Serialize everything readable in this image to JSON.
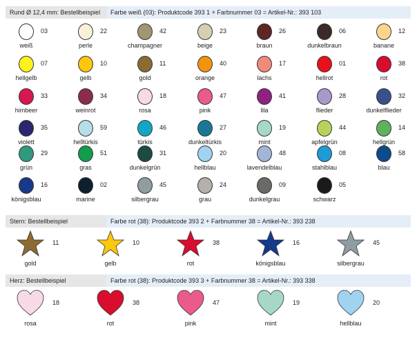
{
  "round": {
    "title": "Rund Ø 12,4 mm: Bestellbeispiel",
    "example": "Farbe weiß (03): Produktcode 393 1 + Farbnummer 03 = Artikel-Nr.: 393 103",
    "items": [
      {
        "name": "weiß",
        "num": "03",
        "color": "#ffffff"
      },
      {
        "name": "perle",
        "num": "22",
        "color": "#f8f1d8"
      },
      {
        "name": "champagner",
        "num": "42",
        "color": "#a39472"
      },
      {
        "name": "beige",
        "num": "23",
        "color": "#d6d0b3"
      },
      {
        "name": "braun",
        "num": "26",
        "color": "#5b2623"
      },
      {
        "name": "dunkelbraun",
        "num": "06",
        "color": "#3a2a2a"
      },
      {
        "name": "banane",
        "num": "12",
        "color": "#fbd68a"
      },
      {
        "name": "hellgelb",
        "num": "07",
        "color": "#fff21a"
      },
      {
        "name": "gelb",
        "num": "10",
        "color": "#fcc70c"
      },
      {
        "name": "gold",
        "num": "11",
        "color": "#8c6b32"
      },
      {
        "name": "orange",
        "num": "40",
        "color": "#f39411"
      },
      {
        "name": "lachs",
        "num": "17",
        "color": "#f08b7a"
      },
      {
        "name": "hellrot",
        "num": "01",
        "color": "#e8101a"
      },
      {
        "name": "rot",
        "num": "38",
        "color": "#d90d2e"
      },
      {
        "name": "himbeer",
        "num": "33",
        "color": "#d8174f"
      },
      {
        "name": "weinrot",
        "num": "34",
        "color": "#8a2c4b"
      },
      {
        "name": "rosa",
        "num": "18",
        "color": "#f8d9e8"
      },
      {
        "name": "pink",
        "num": "47",
        "color": "#ea5b8a"
      },
      {
        "name": "lila",
        "num": "41",
        "color": "#8d2281"
      },
      {
        "name": "flieder",
        "num": "28",
        "color": "#a79acb"
      },
      {
        "name": "dunkelflieder",
        "num": "32",
        "color": "#39508a"
      },
      {
        "name": "violett",
        "num": "35",
        "color": "#2a2770"
      },
      {
        "name": "helltürkis",
        "num": "59",
        "color": "#b7dde6"
      },
      {
        "name": "türkis",
        "num": "46",
        "color": "#12a6c5"
      },
      {
        "name": "dunkeltürkis",
        "num": "27",
        "color": "#1a7896"
      },
      {
        "name": "mint",
        "num": "19",
        "color": "#a6d8c8"
      },
      {
        "name": "apfelgrün",
        "num": "44",
        "color": "#b8d15d"
      },
      {
        "name": "hellgrün",
        "num": "14",
        "color": "#5fb25d"
      },
      {
        "name": "grün",
        "num": "29",
        "color": "#2f9b7e"
      },
      {
        "name": "gras",
        "num": "51",
        "color": "#139d4b"
      },
      {
        "name": "dunkelgrün",
        "num": "31",
        "color": "#1c4a44"
      },
      {
        "name": "hellblau",
        "num": "20",
        "color": "#9fd3f0"
      },
      {
        "name": "lavendelblau",
        "num": "48",
        "color": "#a2b4d8"
      },
      {
        "name": "stahlblau",
        "num": "08",
        "color": "#1d9bd6"
      },
      {
        "name": "blau",
        "num": "58",
        "color": "#0e4b8c"
      },
      {
        "name": "königsblau",
        "num": "16",
        "color": "#17398a"
      },
      {
        "name": "marine",
        "num": "02",
        "color": "#0c2030"
      },
      {
        "name": "silbergrau",
        "num": "45",
        "color": "#8f9da3"
      },
      {
        "name": "grau",
        "num": "24",
        "color": "#b3b1aa"
      },
      {
        "name": "dunkelgrau",
        "num": "09",
        "color": "#6a6a66"
      },
      {
        "name": "schwarz",
        "num": "05",
        "color": "#1a1a1a"
      }
    ]
  },
  "star": {
    "title": "Stern: Bestellbeispiel",
    "example": "Farbe rot (38): Produktcode 393 2 + Farbnummer 38 = Artikel-Nr.: 393 238",
    "items": [
      {
        "name": "gold",
        "num": "11",
        "color": "#8c6b32"
      },
      {
        "name": "gelb",
        "num": "10",
        "color": "#fcc70c"
      },
      {
        "name": "rot",
        "num": "38",
        "color": "#d90d2e"
      },
      {
        "name": "königsblau",
        "num": "16",
        "color": "#17398a"
      },
      {
        "name": "silbergrau",
        "num": "45",
        "color": "#8f9da3"
      }
    ]
  },
  "heart": {
    "title": "Herz: Bestellbeispiel",
    "example": "Farbe rot (38): Produktcode 393 3 + Farbnummer 38 = Artikel-Nr.: 393 338",
    "items": [
      {
        "name": "rosa",
        "num": "18",
        "color": "#f8d9e8"
      },
      {
        "name": "rot",
        "num": "38",
        "color": "#d90d2e"
      },
      {
        "name": "pink",
        "num": "47",
        "color": "#ea5b8a"
      },
      {
        "name": "mint",
        "num": "19",
        "color": "#a6d8c8"
      },
      {
        "name": "hellblau",
        "num": "20",
        "color": "#9fd3f0"
      }
    ]
  }
}
